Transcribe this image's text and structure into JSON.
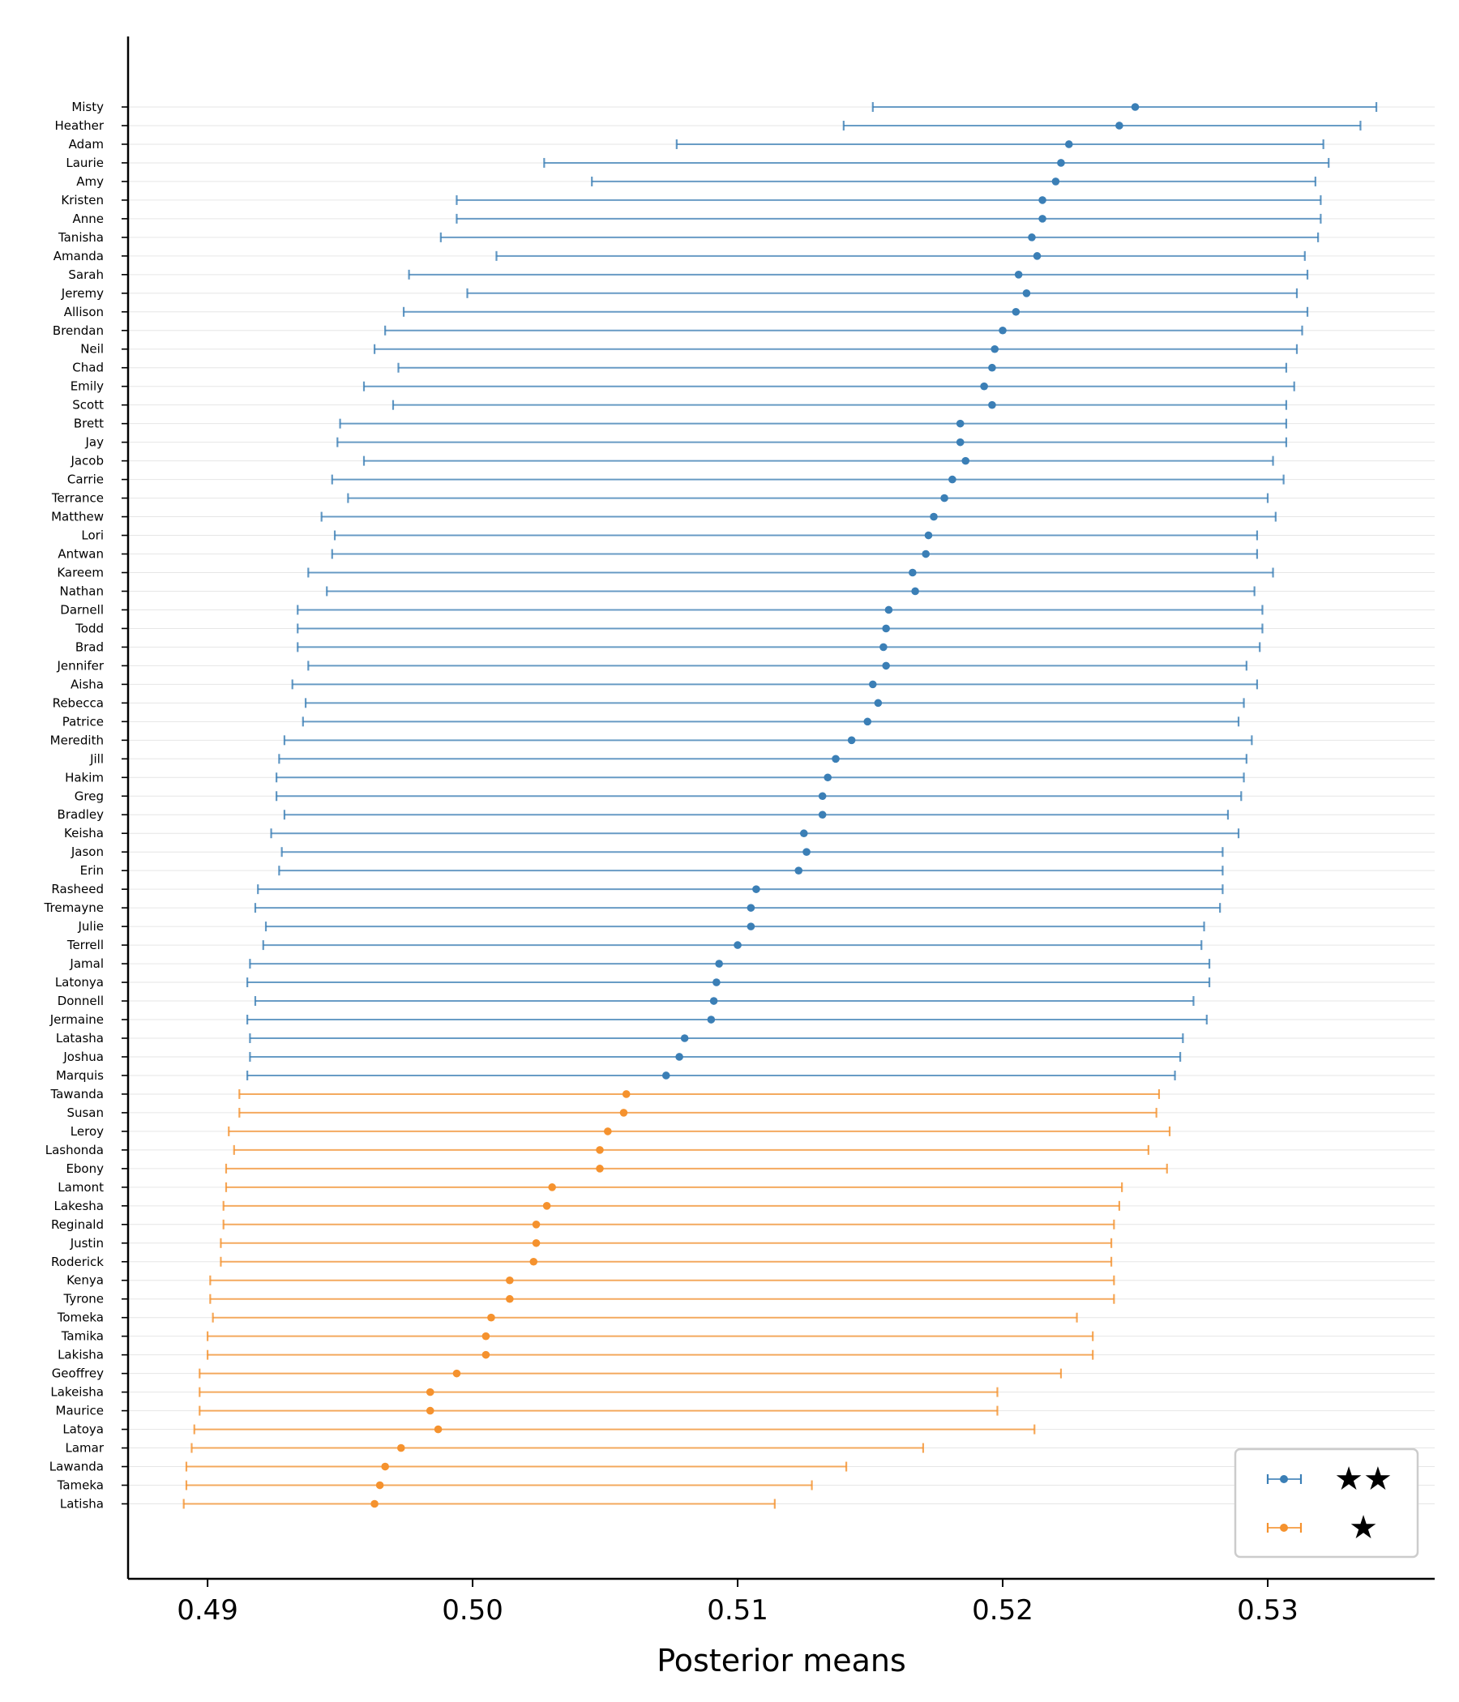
{
  "chart_data": {
    "type": "errorbar",
    "xlabel": "Posterior means",
    "ylabel": "",
    "xlim": [
      0.487,
      0.5363
    ],
    "x_ticks": [
      "0.49",
      "0.50",
      "0.51",
      "0.52",
      "0.53"
    ],
    "x_tick_values": [
      0.49,
      0.5,
      0.51,
      0.52,
      0.53
    ],
    "grid": "horizontal",
    "legend_position": "bottom-right",
    "colors": {
      "two_star": "#3b7fb6",
      "one_star": "#f5922e"
    },
    "legend": [
      {
        "label": "★★",
        "series": "two_star"
      },
      {
        "label": "★",
        "series": "one_star"
      }
    ],
    "items": [
      {
        "name": "Misty",
        "mean": 0.525,
        "low": 0.5151,
        "high": 0.5341,
        "series": "two_star"
      },
      {
        "name": "Heather",
        "mean": 0.5244,
        "low": 0.514,
        "high": 0.5335,
        "series": "two_star"
      },
      {
        "name": "Adam",
        "mean": 0.5225,
        "low": 0.5077,
        "high": 0.5321,
        "series": "two_star"
      },
      {
        "name": "Laurie",
        "mean": 0.5222,
        "low": 0.5027,
        "high": 0.5323,
        "series": "two_star"
      },
      {
        "name": "Amy",
        "mean": 0.522,
        "low": 0.5045,
        "high": 0.5318,
        "series": "two_star"
      },
      {
        "name": "Kristen",
        "mean": 0.5215,
        "low": 0.4994,
        "high": 0.532,
        "series": "two_star"
      },
      {
        "name": "Anne",
        "mean": 0.5215,
        "low": 0.4994,
        "high": 0.532,
        "series": "two_star"
      },
      {
        "name": "Tanisha",
        "mean": 0.5211,
        "low": 0.4988,
        "high": 0.5319,
        "series": "two_star"
      },
      {
        "name": "Amanda",
        "mean": 0.5213,
        "low": 0.5009,
        "high": 0.5314,
        "series": "two_star"
      },
      {
        "name": "Sarah",
        "mean": 0.5206,
        "low": 0.4976,
        "high": 0.5315,
        "series": "two_star"
      },
      {
        "name": "Jeremy",
        "mean": 0.5209,
        "low": 0.4998,
        "high": 0.5311,
        "series": "two_star"
      },
      {
        "name": "Allison",
        "mean": 0.5205,
        "low": 0.4974,
        "high": 0.5315,
        "series": "two_star"
      },
      {
        "name": "Brendan",
        "mean": 0.52,
        "low": 0.4967,
        "high": 0.5313,
        "series": "two_star"
      },
      {
        "name": "Neil",
        "mean": 0.5197,
        "low": 0.4963,
        "high": 0.5311,
        "series": "two_star"
      },
      {
        "name": "Chad",
        "mean": 0.5196,
        "low": 0.4972,
        "high": 0.5307,
        "series": "two_star"
      },
      {
        "name": "Emily",
        "mean": 0.5193,
        "low": 0.4959,
        "high": 0.531,
        "series": "two_star"
      },
      {
        "name": "Scott",
        "mean": 0.5196,
        "low": 0.497,
        "high": 0.5307,
        "series": "two_star"
      },
      {
        "name": "Brett",
        "mean": 0.5184,
        "low": 0.495,
        "high": 0.5307,
        "series": "two_star"
      },
      {
        "name": "Jay",
        "mean": 0.5184,
        "low": 0.4949,
        "high": 0.5307,
        "series": "two_star"
      },
      {
        "name": "Jacob",
        "mean": 0.5186,
        "low": 0.4959,
        "high": 0.5302,
        "series": "two_star"
      },
      {
        "name": "Carrie",
        "mean": 0.5181,
        "low": 0.4947,
        "high": 0.5306,
        "series": "two_star"
      },
      {
        "name": "Terrance",
        "mean": 0.5178,
        "low": 0.4953,
        "high": 0.53,
        "series": "two_star"
      },
      {
        "name": "Matthew",
        "mean": 0.5174,
        "low": 0.4943,
        "high": 0.5303,
        "series": "two_star"
      },
      {
        "name": "Lori",
        "mean": 0.5172,
        "low": 0.4948,
        "high": 0.5296,
        "series": "two_star"
      },
      {
        "name": "Antwan",
        "mean": 0.5171,
        "low": 0.4947,
        "high": 0.5296,
        "series": "two_star"
      },
      {
        "name": "Kareem",
        "mean": 0.5166,
        "low": 0.4938,
        "high": 0.5302,
        "series": "two_star"
      },
      {
        "name": "Nathan",
        "mean": 0.5167,
        "low": 0.4945,
        "high": 0.5295,
        "series": "two_star"
      },
      {
        "name": "Darnell",
        "mean": 0.5157,
        "low": 0.4934,
        "high": 0.5298,
        "series": "two_star"
      },
      {
        "name": "Todd",
        "mean": 0.5156,
        "low": 0.4934,
        "high": 0.5298,
        "series": "two_star"
      },
      {
        "name": "Brad",
        "mean": 0.5155,
        "low": 0.4934,
        "high": 0.5297,
        "series": "two_star"
      },
      {
        "name": "Jennifer",
        "mean": 0.5156,
        "low": 0.4938,
        "high": 0.5292,
        "series": "two_star"
      },
      {
        "name": "Aisha",
        "mean": 0.5151,
        "low": 0.4932,
        "high": 0.5296,
        "series": "two_star"
      },
      {
        "name": "Rebecca",
        "mean": 0.5153,
        "low": 0.4937,
        "high": 0.5291,
        "series": "two_star"
      },
      {
        "name": "Patrice",
        "mean": 0.5149,
        "low": 0.4936,
        "high": 0.5289,
        "series": "two_star"
      },
      {
        "name": "Meredith",
        "mean": 0.5143,
        "low": 0.4929,
        "high": 0.5294,
        "series": "two_star"
      },
      {
        "name": "Jill",
        "mean": 0.5137,
        "low": 0.4927,
        "high": 0.5292,
        "series": "two_star"
      },
      {
        "name": "Hakim",
        "mean": 0.5134,
        "low": 0.4926,
        "high": 0.5291,
        "series": "two_star"
      },
      {
        "name": "Greg",
        "mean": 0.5132,
        "low": 0.4926,
        "high": 0.529,
        "series": "two_star"
      },
      {
        "name": "Bradley",
        "mean": 0.5132,
        "low": 0.4929,
        "high": 0.5285,
        "series": "two_star"
      },
      {
        "name": "Keisha",
        "mean": 0.5125,
        "low": 0.4924,
        "high": 0.5289,
        "series": "two_star"
      },
      {
        "name": "Jason",
        "mean": 0.5126,
        "low": 0.4928,
        "high": 0.5283,
        "series": "two_star"
      },
      {
        "name": "Erin",
        "mean": 0.5123,
        "low": 0.4927,
        "high": 0.5283,
        "series": "two_star"
      },
      {
        "name": "Rasheed",
        "mean": 0.5107,
        "low": 0.4919,
        "high": 0.5283,
        "series": "two_star"
      },
      {
        "name": "Tremayne",
        "mean": 0.5105,
        "low": 0.4918,
        "high": 0.5282,
        "series": "two_star"
      },
      {
        "name": "Julie",
        "mean": 0.5105,
        "low": 0.4922,
        "high": 0.5276,
        "series": "two_star"
      },
      {
        "name": "Terrell",
        "mean": 0.51,
        "low": 0.4921,
        "high": 0.5275,
        "series": "two_star"
      },
      {
        "name": "Jamal",
        "mean": 0.5093,
        "low": 0.4916,
        "high": 0.5278,
        "series": "two_star"
      },
      {
        "name": "Latonya",
        "mean": 0.5092,
        "low": 0.4915,
        "high": 0.5278,
        "series": "two_star"
      },
      {
        "name": "Donnell",
        "mean": 0.5091,
        "low": 0.4918,
        "high": 0.5272,
        "series": "two_star"
      },
      {
        "name": "Jermaine",
        "mean": 0.509,
        "low": 0.4915,
        "high": 0.5277,
        "series": "two_star"
      },
      {
        "name": "Latasha",
        "mean": 0.508,
        "low": 0.4916,
        "high": 0.5268,
        "series": "two_star"
      },
      {
        "name": "Joshua",
        "mean": 0.5078,
        "low": 0.4916,
        "high": 0.5267,
        "series": "two_star"
      },
      {
        "name": "Marquis",
        "mean": 0.5073,
        "low": 0.4915,
        "high": 0.5265,
        "series": "two_star"
      },
      {
        "name": "Tawanda",
        "mean": 0.5058,
        "low": 0.4912,
        "high": 0.5259,
        "series": "one_star"
      },
      {
        "name": "Susan",
        "mean": 0.5057,
        "low": 0.4912,
        "high": 0.5258,
        "series": "one_star"
      },
      {
        "name": "Leroy",
        "mean": 0.5051,
        "low": 0.4908,
        "high": 0.5263,
        "series": "one_star"
      },
      {
        "name": "Lashonda",
        "mean": 0.5048,
        "low": 0.491,
        "high": 0.5255,
        "series": "one_star"
      },
      {
        "name": "Ebony",
        "mean": 0.5048,
        "low": 0.4907,
        "high": 0.5262,
        "series": "one_star"
      },
      {
        "name": "Lamont",
        "mean": 0.503,
        "low": 0.4907,
        "high": 0.5245,
        "series": "one_star"
      },
      {
        "name": "Lakesha",
        "mean": 0.5028,
        "low": 0.4906,
        "high": 0.5244,
        "series": "one_star"
      },
      {
        "name": "Reginald",
        "mean": 0.5024,
        "low": 0.4906,
        "high": 0.5242,
        "series": "one_star"
      },
      {
        "name": "Justin",
        "mean": 0.5024,
        "low": 0.4905,
        "high": 0.5241,
        "series": "one_star"
      },
      {
        "name": "Roderick",
        "mean": 0.5023,
        "low": 0.4905,
        "high": 0.5241,
        "series": "one_star"
      },
      {
        "name": "Kenya",
        "mean": 0.5014,
        "low": 0.4901,
        "high": 0.5242,
        "series": "one_star"
      },
      {
        "name": "Tyrone",
        "mean": 0.5014,
        "low": 0.4901,
        "high": 0.5242,
        "series": "one_star"
      },
      {
        "name": "Tomeka",
        "mean": 0.5007,
        "low": 0.4902,
        "high": 0.5228,
        "series": "one_star"
      },
      {
        "name": "Tamika",
        "mean": 0.5005,
        "low": 0.49,
        "high": 0.5234,
        "series": "one_star"
      },
      {
        "name": "Lakisha",
        "mean": 0.5005,
        "low": 0.49,
        "high": 0.5234,
        "series": "one_star"
      },
      {
        "name": "Geoffrey",
        "mean": 0.4994,
        "low": 0.4897,
        "high": 0.5222,
        "series": "one_star"
      },
      {
        "name": "Lakeisha",
        "mean": 0.4984,
        "low": 0.4897,
        "high": 0.5198,
        "series": "one_star"
      },
      {
        "name": "Maurice",
        "mean": 0.4984,
        "low": 0.4897,
        "high": 0.5198,
        "series": "one_star"
      },
      {
        "name": "Latoya",
        "mean": 0.4987,
        "low": 0.4895,
        "high": 0.5212,
        "series": "one_star"
      },
      {
        "name": "Lamar",
        "mean": 0.4973,
        "low": 0.4894,
        "high": 0.517,
        "series": "one_star"
      },
      {
        "name": "Lawanda",
        "mean": 0.4967,
        "low": 0.4892,
        "high": 0.5141,
        "series": "one_star"
      },
      {
        "name": "Tameka",
        "mean": 0.4965,
        "low": 0.4892,
        "high": 0.5128,
        "series": "one_star"
      },
      {
        "name": "Latisha",
        "mean": 0.4963,
        "low": 0.4891,
        "high": 0.5114,
        "series": "one_star"
      }
    ]
  }
}
